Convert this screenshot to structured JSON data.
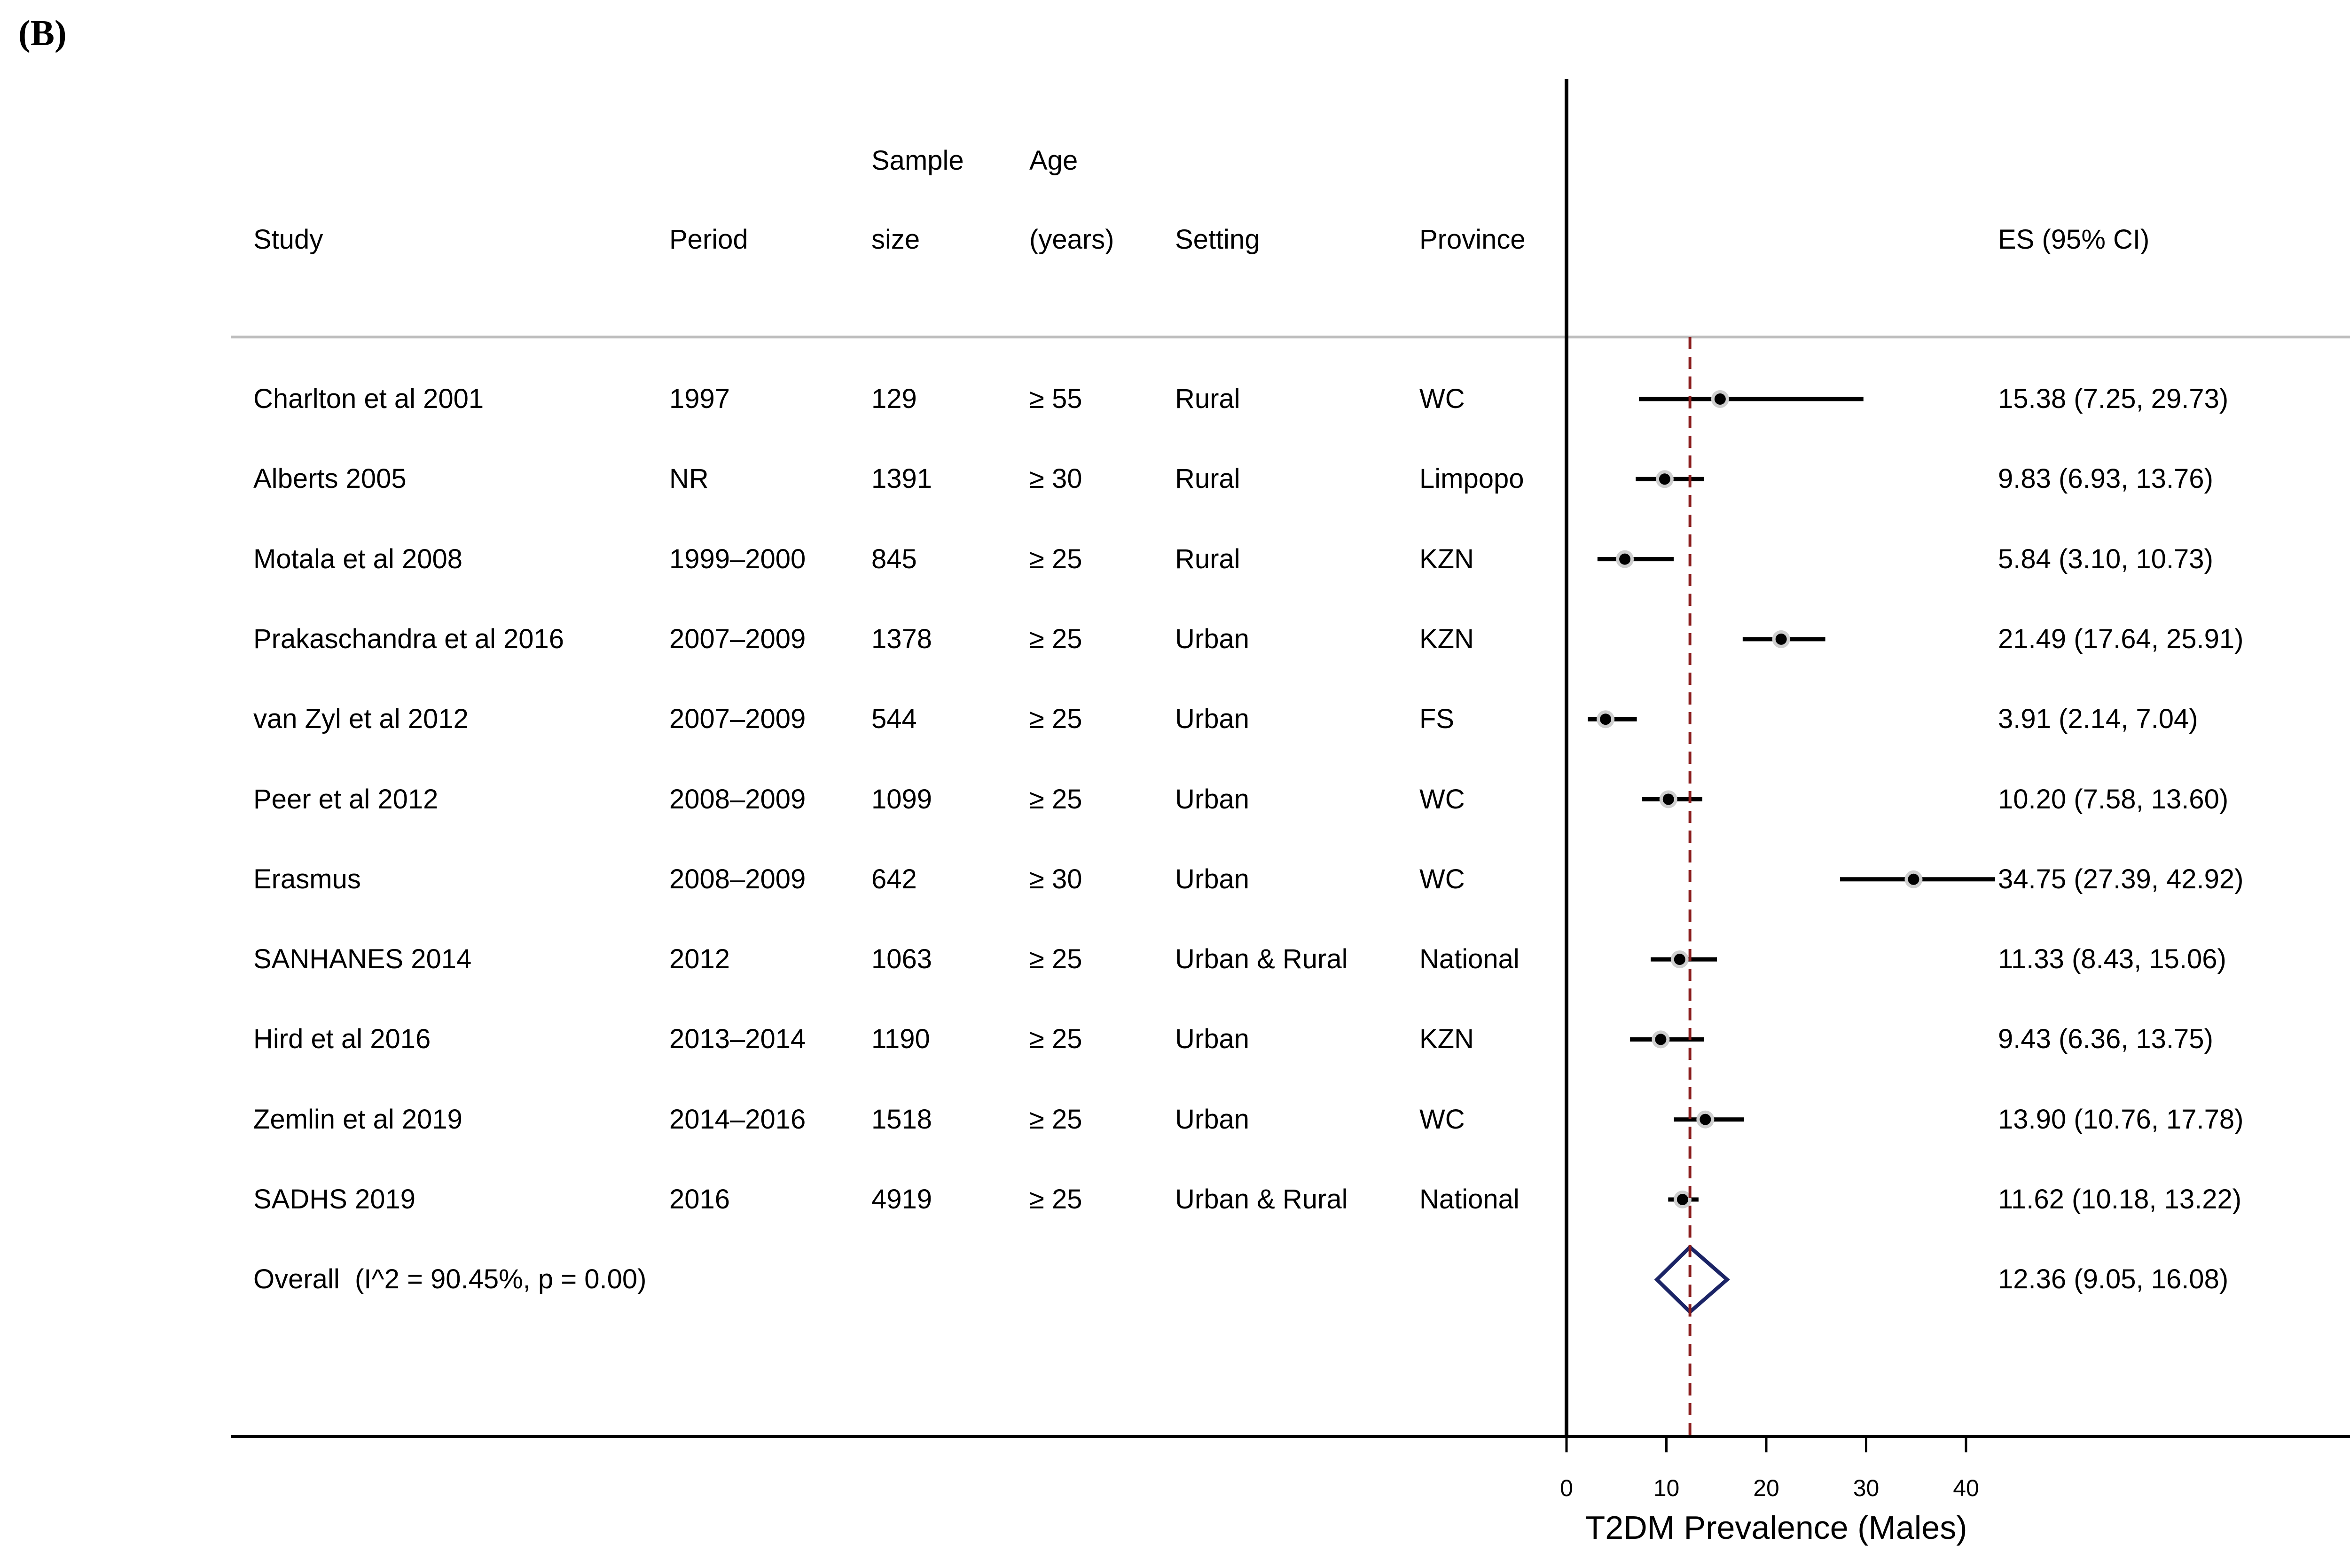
{
  "panel_label": "(B)",
  "columns": {
    "study": "Study",
    "period": "Period",
    "sample_top": "Sample",
    "sample_bottom": "size",
    "age_top": "Age",
    "age_bottom": "(years)",
    "setting": "Setting",
    "province": "Province",
    "es": "ES (95% CI)"
  },
  "colors": {
    "ci_line": "#000000",
    "point": "#000000",
    "point_halo": "#cfcfcf",
    "reference_line": "#8b1e1e",
    "diamond": "#1b2466",
    "header_rule": "#bdbdbd",
    "axis": "#000000"
  },
  "chart_data": {
    "type": "scatter",
    "title": "",
    "xlabel": "T2DM Prevalence (Males)",
    "ylabel": "",
    "xticks": [
      0,
      10,
      20,
      30,
      40
    ],
    "xlim": [
      0,
      40
    ],
    "reference_line": 12.36,
    "rows": [
      {
        "study": "Charlton et al 2001",
        "period": "1997",
        "sample_size": "129",
        "age": "≥ 55",
        "setting": "Rural",
        "province": "WC",
        "es": 15.38,
        "ci_low": 7.25,
        "ci_high": 29.73,
        "es_label": "15.38 (7.25, 29.73)"
      },
      {
        "study": "Alberts 2005",
        "period": "NR",
        "sample_size": "1391",
        "age": "≥ 30",
        "setting": "Rural",
        "province": "Limpopo",
        "es": 9.83,
        "ci_low": 6.93,
        "ci_high": 13.76,
        "es_label": "9.83 (6.93, 13.76)"
      },
      {
        "study": "Motala et al 2008",
        "period": "1999–2000",
        "sample_size": "845",
        "age": "≥ 25",
        "setting": "Rural",
        "province": "KZN",
        "es": 5.84,
        "ci_low": 3.1,
        "ci_high": 10.73,
        "es_label": "5.84 (3.10, 10.73)"
      },
      {
        "study": "Prakaschandra et al 2016",
        "period": "2007–2009",
        "sample_size": "1378",
        "age": "≥ 25",
        "setting": "Urban",
        "province": "KZN",
        "es": 21.49,
        "ci_low": 17.64,
        "ci_high": 25.91,
        "es_label": "21.49 (17.64, 25.91)"
      },
      {
        "study": "van Zyl et al 2012",
        "period": "2007–2009",
        "sample_size": "544",
        "age": "≥ 25",
        "setting": "Urban",
        "province": "FS",
        "es": 3.91,
        "ci_low": 2.14,
        "ci_high": 7.04,
        "es_label": "3.91 (2.14, 7.04)"
      },
      {
        "study": "Peer et al 2012",
        "period": "2008–2009",
        "sample_size": "1099",
        "age": "≥ 25",
        "setting": "Urban",
        "province": "WC",
        "es": 10.2,
        "ci_low": 7.58,
        "ci_high": 13.6,
        "es_label": "10.20 (7.58, 13.60)"
      },
      {
        "study": "Erasmus",
        "period": "2008–2009",
        "sample_size": "642",
        "age": "≥ 30",
        "setting": "Urban",
        "province": "WC",
        "es": 34.75,
        "ci_low": 27.39,
        "ci_high": 42.92,
        "es_label": "34.75 (27.39, 42.92)"
      },
      {
        "study": "SANHANES 2014",
        "period": "2012",
        "sample_size": "1063",
        "age": "≥ 25",
        "setting": "Urban & Rural",
        "province": "National",
        "es": 11.33,
        "ci_low": 8.43,
        "ci_high": 15.06,
        "es_label": "11.33 (8.43, 15.06)"
      },
      {
        "study": "Hird et al 2016",
        "period": "2013–2014",
        "sample_size": "1190",
        "age": "≥ 25",
        "setting": "Urban",
        "province": "KZN",
        "es": 9.43,
        "ci_low": 6.36,
        "ci_high": 13.75,
        "es_label": "9.43 (6.36, 13.75)"
      },
      {
        "study": "Zemlin et al 2019",
        "period": "2014–2016",
        "sample_size": "1518",
        "age": "≥ 25",
        "setting": "Urban",
        "province": "WC",
        "es": 13.9,
        "ci_low": 10.76,
        "ci_high": 17.78,
        "es_label": "13.90 (10.76, 17.78)"
      },
      {
        "study": "SADHS 2019",
        "period": "2016",
        "sample_size": "4919",
        "age": "≥ 25",
        "setting": "Urban & Rural",
        "province": "National",
        "es": 11.62,
        "ci_low": 10.18,
        "ci_high": 13.22,
        "es_label": "11.62 (10.18, 13.22)"
      }
    ],
    "overall": {
      "label": "Overall  (I^2 = 90.45%, p = 0.00)",
      "es": 12.36,
      "ci_low": 9.05,
      "ci_high": 16.08,
      "es_label": "12.36 (9.05, 16.08)"
    }
  }
}
